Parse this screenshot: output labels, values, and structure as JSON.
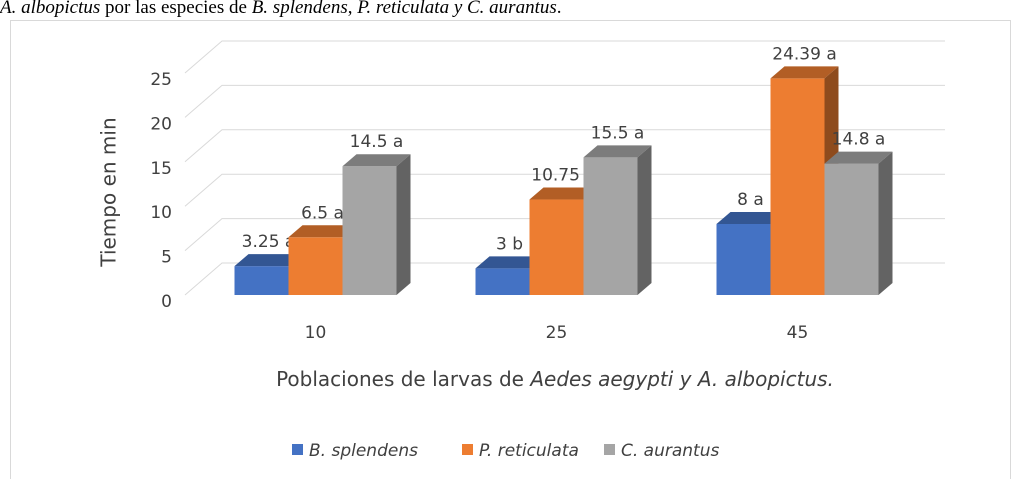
{
  "caption": {
    "parts": [
      "A. albopictus",
      " por las especies de ",
      "B. splendens",
      ", ",
      "P. reticulata y C. aurantus",
      "."
    ]
  },
  "chart_data": {
    "type": "bar3d",
    "categories": [
      "10",
      "25",
      "45"
    ],
    "series": [
      {
        "name": "B. splendens",
        "color": "#4472c4",
        "values": [
          3.25,
          3,
          8
        ],
        "value_labels": [
          "3.25 a",
          "3 b",
          "8 a"
        ]
      },
      {
        "name": "P. reticulata",
        "color": "#ed7d31",
        "values": [
          6.5,
          10.75,
          24.39
        ],
        "value_labels": [
          "6.5 a",
          "10.75 a",
          "24.39 a"
        ]
      },
      {
        "name": "C. aurantus",
        "color": "#a5a5a5",
        "values": [
          14.5,
          15.5,
          14.8
        ],
        "value_labels": [
          "14.5 a",
          "15.5 a",
          "14.8 a"
        ]
      }
    ],
    "y_label": "Tiempo en min",
    "x_label": {
      "plain": "Poblaciones de larvas de ",
      "italic": "Aedes aegypti y A. albopictus."
    },
    "ylim": [
      0,
      25
    ],
    "yticks": [
      0,
      5,
      10,
      15,
      20,
      25
    ],
    "grid": true,
    "legend": "bottom"
  }
}
